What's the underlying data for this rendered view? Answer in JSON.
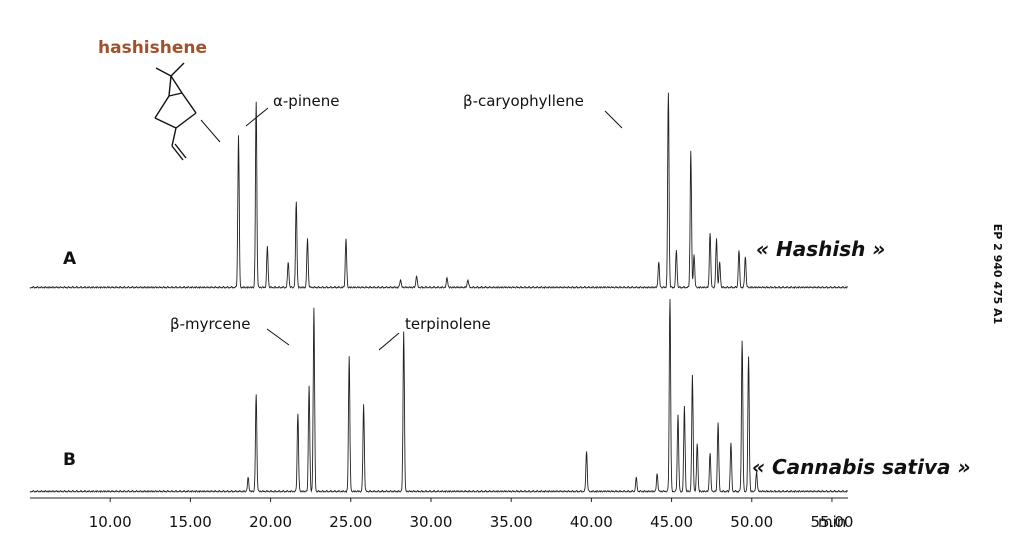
{
  "document_id": "EP 2 940 475 A1",
  "chart_data": {
    "type": "line",
    "x_unit": "min",
    "xlim": [
      5,
      56
    ],
    "x_ticks": [
      "10.00",
      "15.00",
      "20.00",
      "25.00",
      "30.00",
      "35.00",
      "40.00",
      "45.00",
      "50.00",
      "55.00"
    ],
    "series": [
      {
        "name": "« Hashish »",
        "panel": "A",
        "peaks": [
          [
            18.0,
            0.78
          ],
          [
            19.1,
            0.95
          ],
          [
            19.8,
            0.21
          ],
          [
            21.1,
            0.13
          ],
          [
            21.6,
            0.44
          ],
          [
            22.3,
            0.25
          ],
          [
            24.7,
            0.25
          ],
          [
            28.1,
            0.04
          ],
          [
            29.1,
            0.06
          ],
          [
            31.0,
            0.05
          ],
          [
            32.3,
            0.04
          ],
          [
            44.2,
            0.13
          ],
          [
            44.8,
            1.0
          ],
          [
            45.3,
            0.19
          ],
          [
            46.2,
            0.7
          ],
          [
            46.4,
            0.17
          ],
          [
            47.4,
            0.28
          ],
          [
            47.8,
            0.25
          ],
          [
            48.0,
            0.13
          ],
          [
            49.2,
            0.19
          ],
          [
            49.6,
            0.16
          ]
        ],
        "annotations": [
          {
            "text": "hashishene",
            "x": 18.0
          },
          {
            "text": "α-pinene",
            "x": 19.1
          },
          {
            "text": "β-caryophyllene",
            "x": 44.8
          }
        ]
      },
      {
        "name": "« Cannabis sativa »",
        "panel": "B",
        "peaks": [
          [
            18.6,
            0.07
          ],
          [
            19.1,
            0.5
          ],
          [
            21.7,
            0.4
          ],
          [
            22.4,
            0.55
          ],
          [
            22.7,
            0.95
          ],
          [
            24.9,
            0.7
          ],
          [
            25.8,
            0.45
          ],
          [
            28.3,
            0.83
          ],
          [
            39.7,
            0.21
          ],
          [
            42.8,
            0.07
          ],
          [
            44.1,
            0.09
          ],
          [
            44.9,
            1.0
          ],
          [
            45.4,
            0.4
          ],
          [
            45.8,
            0.44
          ],
          [
            46.3,
            0.6
          ],
          [
            46.6,
            0.25
          ],
          [
            47.4,
            0.2
          ],
          [
            47.9,
            0.36
          ],
          [
            48.7,
            0.25
          ],
          [
            49.4,
            0.78
          ],
          [
            49.8,
            0.7
          ],
          [
            50.3,
            0.1
          ]
        ],
        "annotations": [
          {
            "text": "β-myrcene",
            "x": 22.4
          },
          {
            "text": "terpinolene",
            "x": 28.3
          }
        ]
      }
    ]
  }
}
